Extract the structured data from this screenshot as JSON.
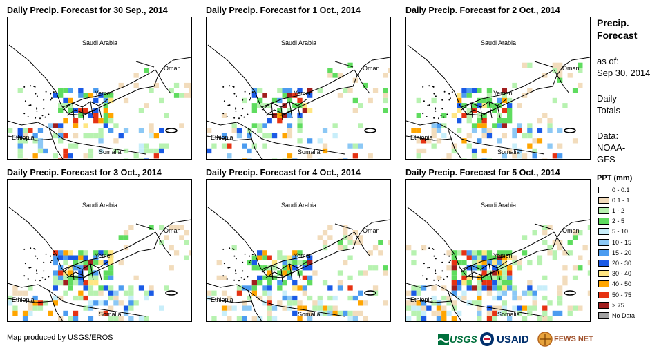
{
  "panels": [
    {
      "title": "Daily Precip. Forecast for 30 Sep., 2014"
    },
    {
      "title": "Daily Precip. Forecast for 1 Oct., 2014"
    },
    {
      "title": "Daily Precip. Forecast for 2 Oct., 2014"
    },
    {
      "title": "Daily Precip. Forecast for 3 Oct., 2014"
    },
    {
      "title": "Daily Precip. Forecast for 4 Oct., 2014"
    },
    {
      "title": "Daily Precip. Forecast for 5 Oct., 2014"
    }
  ],
  "map_labels": {
    "saudi": "Saudi Arabia",
    "oman": "Oman",
    "yemen": "Yemen",
    "ethiopia": "Ethiopia",
    "somalia": "Somalia"
  },
  "sidebar": {
    "title_line1": "Precip.",
    "title_line2": "Forecast",
    "asof_line1": "as of:",
    "asof_line2": "Sep 30, 2014",
    "daily_line1": "Daily",
    "daily_line2": "Totals",
    "data_line1": "Data:",
    "data_line2": "NOAA-",
    "data_line3": "GFS"
  },
  "legend": {
    "title": "PPT (mm)",
    "items": [
      {
        "label": "0 - 0.1",
        "color": "#ffffff"
      },
      {
        "label": "0.1 - 1",
        "color": "#f2dcbc"
      },
      {
        "label": "1 - 2",
        "color": "#b7f2b0"
      },
      {
        "label": "2 - 5",
        "color": "#5fdc5f"
      },
      {
        "label": "5 - 10",
        "color": "#c8eefa"
      },
      {
        "label": "10 - 15",
        "color": "#8cc8f5"
      },
      {
        "label": "15 - 20",
        "color": "#4c9cf0"
      },
      {
        "label": "20 - 30",
        "color": "#1a5ae6"
      },
      {
        "label": "30 - 40",
        "color": "#ffe682"
      },
      {
        "label": "40 - 50",
        "color": "#ffa500"
      },
      {
        "label": "50 - 75",
        "color": "#e63212"
      },
      {
        "label": "> 75",
        "color": "#a01e1e"
      },
      {
        "label": "No Data",
        "color": "#a0a0a0"
      }
    ]
  },
  "footer": {
    "credit": "Map produced by USGS/EROS",
    "logo_usgs": "USGS",
    "logo_usaid": "USAID",
    "logo_fewsnet": "FEWS NET"
  }
}
